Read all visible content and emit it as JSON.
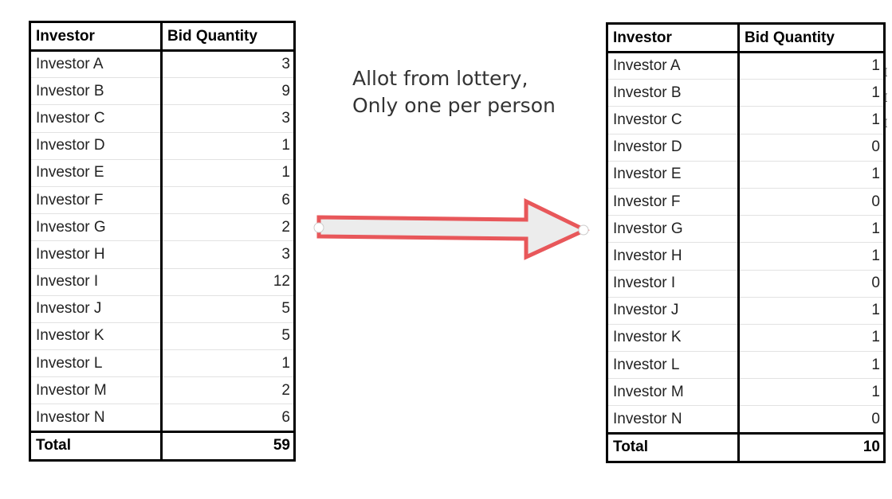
{
  "left_table": {
    "headers": [
      "Investor",
      "Bid Quantity"
    ],
    "rows": [
      [
        "Investor A",
        "3"
      ],
      [
        "Investor B",
        "9"
      ],
      [
        "Investor C",
        "3"
      ],
      [
        "Investor D",
        "1"
      ],
      [
        "Investor E",
        "1"
      ],
      [
        "Investor F",
        "6"
      ],
      [
        "Investor G",
        "2"
      ],
      [
        "Investor H",
        "3"
      ],
      [
        "Investor I",
        "12"
      ],
      [
        "Investor J",
        "5"
      ],
      [
        "Investor K",
        "5"
      ],
      [
        "Investor L",
        "1"
      ],
      [
        "Investor M",
        "2"
      ],
      [
        "Investor N",
        "6"
      ]
    ],
    "total": [
      "Total",
      "59"
    ]
  },
  "caption": {
    "line1": "Allot from lottery,",
    "line2": "Only one per person"
  },
  "arrow": {
    "stroke_color": "#e8575a",
    "fill_color": "#ececec"
  },
  "right_table": {
    "headers": [
      "Investor",
      "Bid Quantity"
    ],
    "rows": [
      [
        "Investor A",
        "1"
      ],
      [
        "Investor B",
        "1"
      ],
      [
        "Investor C",
        "1"
      ],
      [
        "Investor D",
        "0"
      ],
      [
        "Investor E",
        "1"
      ],
      [
        "Investor F",
        "0"
      ],
      [
        "Investor G",
        "1"
      ],
      [
        "Investor H",
        "1"
      ],
      [
        "Investor I",
        "0"
      ],
      [
        "Investor J",
        "1"
      ],
      [
        "Investor K",
        "1"
      ],
      [
        "Investor L",
        "1"
      ],
      [
        "Investor M",
        "1"
      ],
      [
        "Investor N",
        "0"
      ]
    ],
    "total": [
      "Total",
      "10"
    ]
  }
}
